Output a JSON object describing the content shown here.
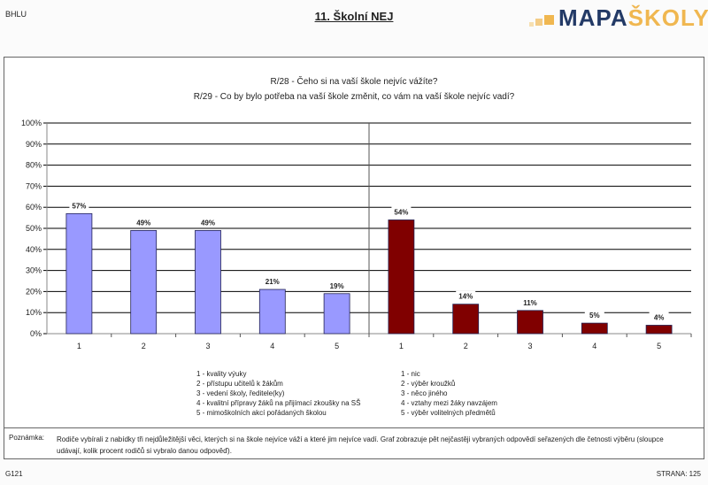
{
  "header": {
    "code": "BHLU",
    "title": "11. Školní NEJ",
    "logo_part1": "MAPA",
    "logo_part2": "ŠKOLY"
  },
  "questions": [
    "R/28 - Čeho si na vaší škole nejvíc vážíte?",
    "R/29 - Co by bylo potřeba na vaší škole změnit, co vám na vaší škole nejvíc vadí?"
  ],
  "chart_data": {
    "type": "bar",
    "ylim": [
      0,
      100
    ],
    "yticks": [
      "0%",
      "10%",
      "20%",
      "30%",
      "40%",
      "50%",
      "60%",
      "70%",
      "80%",
      "90%",
      "100%"
    ],
    "colors": {
      "left": "#9999ff",
      "right": "#800000"
    },
    "groups": [
      {
        "name": "R/28",
        "categories": [
          "1",
          "2",
          "3",
          "4",
          "5"
        ],
        "values": [
          57,
          49,
          49,
          21,
          19
        ],
        "labels": [
          "57%",
          "49%",
          "49%",
          "21%",
          "19%"
        ],
        "legend": [
          "1 - kvality výuky",
          "2 - přístupu učitelů k žákům",
          "3 - vedení školy, ředitele(ky)",
          "4 - kvalitní přípravy žáků na přijímací zkoušky na SŠ",
          "5 - mimoškolních akcí pořádaných školou"
        ]
      },
      {
        "name": "R/29",
        "categories": [
          "1",
          "2",
          "3",
          "4",
          "5"
        ],
        "values": [
          54,
          14,
          11,
          5,
          4
        ],
        "labels": [
          "54%",
          "14%",
          "11%",
          "5%",
          "4%"
        ],
        "legend": [
          "1 - nic",
          "2 - výběr kroužků",
          "3 - něco jiného",
          "4 - vztahy mezi žáky navzájem",
          "5 - výběr volitelných předmětů"
        ]
      }
    ]
  },
  "note": {
    "label": "Poznámka:",
    "text": "Rodiče vybírali z nabídky tři nejdůležitější věci, kterých si na škole nejvíce váží a které jim nejvíce vadí. Graf zobrazuje pět nejčastěji vybraných odpovědí seřazených dle četnosti výběru (sloupce udávají, kolik procent rodičů si vybralo danou odpověď)."
  },
  "footer": {
    "code": "G121",
    "page": "STRANA: 125"
  }
}
